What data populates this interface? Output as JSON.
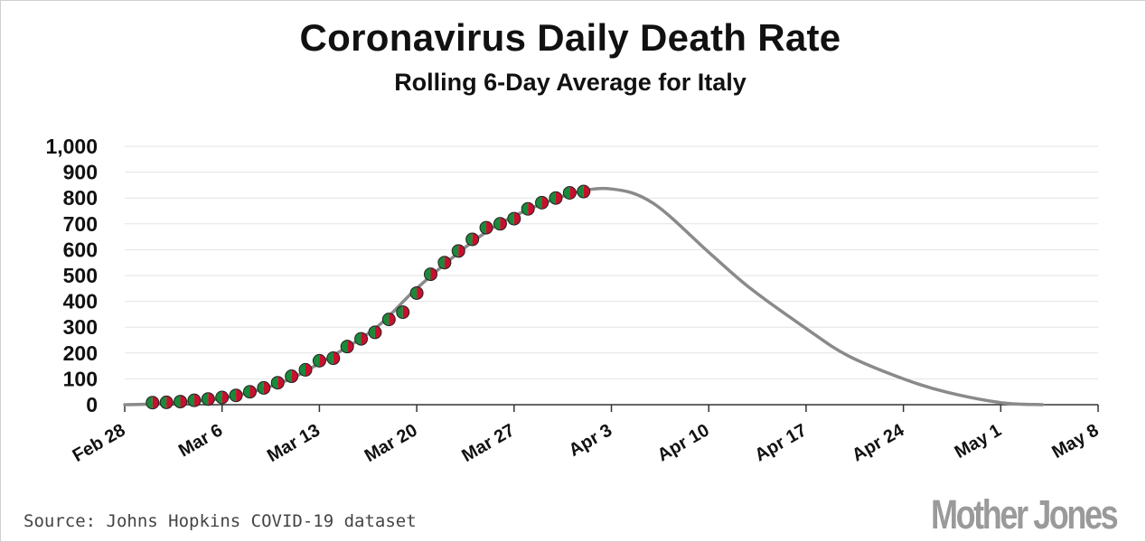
{
  "chart_data": {
    "type": "scatter",
    "title": "Coronavirus Daily Death Rate",
    "subtitle": "Rolling 6-Day Average for Italy",
    "ylim": [
      0,
      1000
    ],
    "yticks": [
      0,
      100,
      200,
      300,
      400,
      500,
      600,
      700,
      800,
      900,
      1000
    ],
    "ytick_labels": [
      "0",
      "100",
      "200",
      "300",
      "400",
      "500",
      "600",
      "700",
      "800",
      "900",
      "1,000"
    ],
    "x_start_date": "2020-02-28",
    "x_end_date": "2020-05-08",
    "xtick_dates": [
      "2020-02-28",
      "2020-03-06",
      "2020-03-13",
      "2020-03-20",
      "2020-03-27",
      "2020-04-03",
      "2020-04-10",
      "2020-04-17",
      "2020-04-24",
      "2020-05-01",
      "2020-05-08"
    ],
    "xtick_labels": [
      "Feb 28",
      "Mar 6",
      "Mar 13",
      "Mar 20",
      "Mar 27",
      "Apr 3",
      "Apr 10",
      "Apr 17",
      "Apr 24",
      "May 1",
      "May 8"
    ],
    "grid": true,
    "series": [
      {
        "type": "scatter",
        "x": [
          "2020-03-01",
          "2020-03-02",
          "2020-03-03",
          "2020-03-04",
          "2020-03-05",
          "2020-03-06",
          "2020-03-07",
          "2020-03-08",
          "2020-03-09",
          "2020-03-10",
          "2020-03-11",
          "2020-03-12",
          "2020-03-13",
          "2020-03-14",
          "2020-03-15",
          "2020-03-16",
          "2020-03-17",
          "2020-03-18",
          "2020-03-19",
          "2020-03-20",
          "2020-03-21",
          "2020-03-22",
          "2020-03-23",
          "2020-03-24",
          "2020-03-25",
          "2020-03-26",
          "2020-03-27",
          "2020-03-28",
          "2020-03-29",
          "2020-03-30",
          "2020-03-31",
          "2020-04-01"
        ],
        "values": [
          8,
          9,
          12,
          17,
          22,
          28,
          36,
          50,
          65,
          85,
          110,
          135,
          170,
          180,
          225,
          255,
          280,
          330,
          358,
          432,
          505,
          550,
          595,
          640,
          685,
          700,
          720,
          758,
          782,
          800,
          820,
          825
        ],
        "marker_colors": [
          "#c8102e",
          "#1a8a3a"
        ]
      },
      {
        "type": "line",
        "x": [
          "2020-02-28",
          "2020-03-02",
          "2020-03-06",
          "2020-03-10",
          "2020-03-13",
          "2020-03-17",
          "2020-03-20",
          "2020-03-24",
          "2020-03-27",
          "2020-03-31",
          "2020-04-03",
          "2020-04-06",
          "2020-04-10",
          "2020-04-13",
          "2020-04-17",
          "2020-04-20",
          "2020-04-24",
          "2020-04-27",
          "2020-05-01",
          "2020-05-04"
        ],
        "values": [
          0,
          5,
          25,
          80,
          160,
          295,
          450,
          630,
          730,
          815,
          835,
          780,
          590,
          450,
          295,
          190,
          100,
          50,
          8,
          0
        ],
        "color": "#8a8a8a"
      }
    ]
  },
  "source_text": "Source: Johns Hopkins COVID-19 dataset",
  "logo_text": "Mother Jones"
}
